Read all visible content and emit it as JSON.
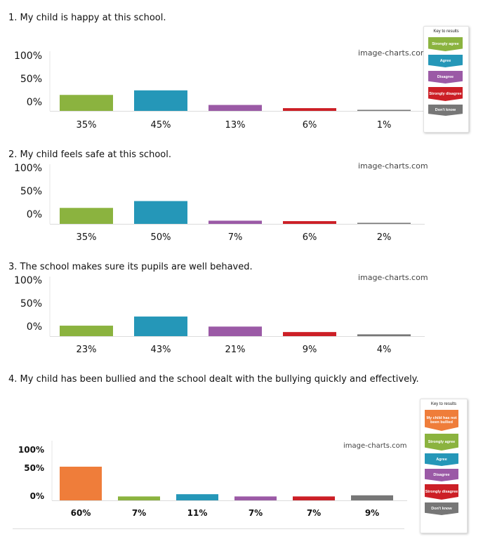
{
  "questions": [
    {
      "label": "1. My child is happy at this school."
    },
    {
      "label": "2. My child feels safe at this school."
    },
    {
      "label": "3. The school makes sure its pupils are well behaved."
    },
    {
      "label": "4. My child has been bullied and the school dealt with the bullying quickly and effectively."
    }
  ],
  "keys": [
    {
      "title": "Key to results",
      "items": [
        {
          "label": "Strongly agree",
          "color": "#8bb33f"
        },
        {
          "label": "Agree",
          "color": "#2597b8"
        },
        {
          "label": "Disagree",
          "color": "#9b5aa6"
        },
        {
          "label": "Strongly disagree",
          "color": "#cc1f26"
        },
        {
          "label": "Don't know",
          "color": "#777777"
        }
      ]
    },
    {
      "title": "Key to results",
      "items": [
        {
          "label": "My child has not been bullied",
          "color": "#ef7d3a"
        },
        {
          "label": "Strongly agree",
          "color": "#8bb33f"
        },
        {
          "label": "Agree",
          "color": "#2597b8"
        },
        {
          "label": "Disagree",
          "color": "#9b5aa6"
        },
        {
          "label": "Strongly disagree",
          "color": "#cc1f26"
        },
        {
          "label": "Don't know",
          "color": "#777777"
        }
      ]
    }
  ],
  "chart_data": [
    {
      "type": "bar",
      "watermark": "image-charts.com",
      "yticks": [
        "100%",
        "50%",
        "0%"
      ],
      "ylim": [
        0,
        100
      ],
      "values": [
        35,
        45,
        13,
        6,
        1
      ],
      "labels": [
        "35%",
        "45%",
        "13%",
        "6%",
        "1%"
      ],
      "colors": [
        "#8bb33f",
        "#2597b8",
        "#9b5aa6",
        "#cc1f26",
        "#777777"
      ]
    },
    {
      "type": "bar",
      "watermark": "image-charts.com",
      "yticks": [
        "100%",
        "50%",
        "0%"
      ],
      "ylim": [
        0,
        100
      ],
      "values": [
        35,
        50,
        7,
        6,
        2
      ],
      "labels": [
        "35%",
        "50%",
        "7%",
        "6%",
        "2%"
      ],
      "colors": [
        "#8bb33f",
        "#2597b8",
        "#9b5aa6",
        "#cc1f26",
        "#777777"
      ]
    },
    {
      "type": "bar",
      "watermark": "image-charts.com",
      "yticks": [
        "100%",
        "50%",
        "0%"
      ],
      "ylim": [
        0,
        100
      ],
      "values": [
        23,
        43,
        21,
        9,
        4
      ],
      "labels": [
        "23%",
        "43%",
        "21%",
        "9%",
        "4%"
      ],
      "colors": [
        "#8bb33f",
        "#2597b8",
        "#9b5aa6",
        "#cc1f26",
        "#777777"
      ]
    },
    {
      "type": "bar",
      "watermark": "image-charts.com",
      "yticks": [
        "100%",
        "50%",
        "0%"
      ],
      "ylim": [
        0,
        100
      ],
      "values": [
        60,
        7,
        11,
        7,
        7,
        9
      ],
      "labels": [
        "60%",
        "7%",
        "11%",
        "7%",
        "7%",
        "9%"
      ],
      "colors": [
        "#ef7d3a",
        "#8bb33f",
        "#2597b8",
        "#9b5aa6",
        "#cc1f26",
        "#777777"
      ]
    }
  ]
}
